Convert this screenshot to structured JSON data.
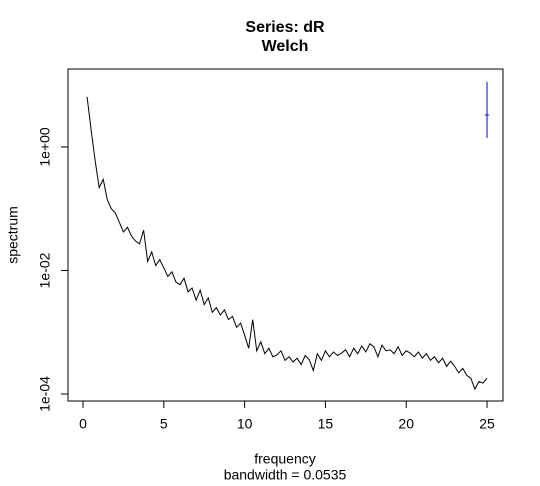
{
  "chart_data": {
    "type": "line",
    "title": "Series: dR",
    "subtitle": "Welch",
    "xlabel": "frequency",
    "sub": "bandwidth = 0.0535",
    "ylabel": "spectrum",
    "log_y": true,
    "color": "#000000",
    "xlim": [
      -0.93,
      25.99
    ],
    "xticks": [
      0,
      5,
      10,
      15,
      20,
      25
    ],
    "ylim": [
      7.7e-05,
      18.3
    ],
    "yticks": [
      {
        "value": 0.0001,
        "label": "1e-04"
      },
      {
        "value": 0.01,
        "label": "1e-02"
      },
      {
        "value": 1,
        "label": "1e+00"
      }
    ],
    "x": [
      0.25,
      0.5,
      0.75,
      1,
      1.25,
      1.5,
      1.75,
      2,
      2.25,
      2.5,
      2.75,
      3,
      3.25,
      3.5,
      3.75,
      4,
      4.25,
      4.5,
      4.75,
      5,
      5.25,
      5.5,
      5.75,
      6,
      6.25,
      6.5,
      6.75,
      7,
      7.25,
      7.5,
      7.75,
      8,
      8.25,
      8.5,
      8.75,
      9,
      9.25,
      9.5,
      9.75,
      10,
      10.25,
      10.5,
      10.75,
      11,
      11.25,
      11.5,
      11.75,
      12,
      12.25,
      12.5,
      12.75,
      13,
      13.25,
      13.5,
      13.75,
      14,
      14.25,
      14.5,
      14.75,
      15,
      15.25,
      15.5,
      15.75,
      16,
      16.25,
      16.5,
      16.75,
      17,
      17.25,
      17.5,
      17.75,
      18,
      18.25,
      18.5,
      18.75,
      19,
      19.25,
      19.5,
      19.75,
      20,
      20.25,
      20.5,
      20.75,
      21,
      21.25,
      21.5,
      21.75,
      22,
      22.25,
      22.5,
      22.75,
      23,
      23.25,
      23.5,
      23.75,
      24,
      24.25,
      24.5,
      24.75,
      25
    ],
    "values": [
      6.5,
      1.9,
      0.6,
      0.22,
      0.3,
      0.14,
      0.1,
      0.085,
      0.06,
      0.042,
      0.05,
      0.036,
      0.03,
      0.027,
      0.045,
      0.014,
      0.02,
      0.012,
      0.015,
      0.011,
      0.008,
      0.0095,
      0.0065,
      0.0059,
      0.0075,
      0.0045,
      0.0052,
      0.0033,
      0.0048,
      0.0028,
      0.0036,
      0.0021,
      0.0025,
      0.0019,
      0.0023,
      0.0016,
      0.0018,
      0.0012,
      0.0014,
      0.0009,
      0.00055,
      0.0016,
      0.0005,
      0.0007,
      0.00045,
      0.00055,
      0.0004,
      0.00043,
      0.0005,
      0.00035,
      0.0004,
      0.00033,
      0.00038,
      0.0003,
      0.00042,
      0.00036,
      0.00024,
      0.00045,
      0.00035,
      0.0005,
      0.0004,
      0.00048,
      0.00042,
      0.00046,
      0.00052,
      0.0004,
      0.00055,
      0.00045,
      0.0006,
      0.00048,
      0.00065,
      0.00058,
      0.0004,
      0.00062,
      0.0005,
      0.00052,
      0.00045,
      0.00058,
      0.00042,
      0.0005,
      0.00046,
      0.0004,
      0.00048,
      0.00038,
      0.00045,
      0.00035,
      0.0004,
      0.00032,
      0.00038,
      0.00028,
      0.00034,
      0.00028,
      0.00022,
      0.00026,
      0.0002,
      0.00018,
      0.00012,
      0.00016,
      0.00015,
      0.00018
    ],
    "ci_bar": {
      "x": 25,
      "center": 3.3,
      "low": 1.4,
      "high": 11.3,
      "color": "#0000ff"
    }
  }
}
